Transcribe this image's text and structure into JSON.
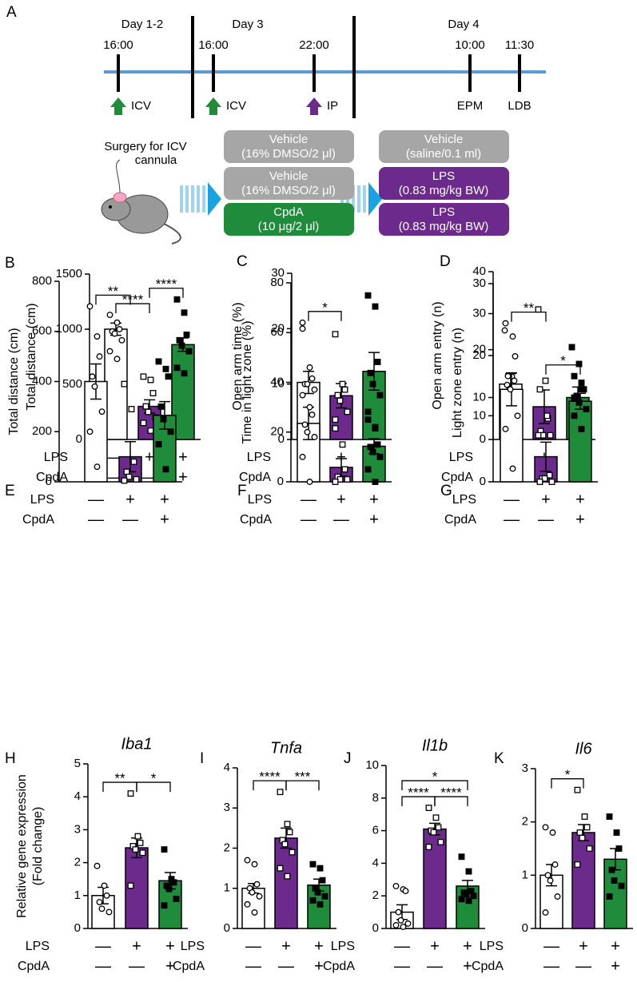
{
  "diagram": {
    "label": "A",
    "days": [
      "Day 1-2",
      "Day 3",
      "Day 4"
    ],
    "times": [
      "16:00",
      "16:00",
      "22:00",
      "10:00",
      "11:30"
    ],
    "events": [
      "ICV",
      "ICV",
      "IP",
      "EPM",
      "LDB"
    ],
    "surgery": [
      "Surgery for ICV",
      "cannula"
    ],
    "treatments_day3": [
      [
        "Vehicle",
        "(16% DMSO/2 μl)"
      ],
      [
        "Vehicle",
        "(16% DMSO/2 μl)"
      ],
      [
        "CpdA",
        "(10 μg/2 μl)"
      ]
    ],
    "treatments_day4": [
      [
        "Vehicle",
        "(saline/0.1 ml)"
      ],
      [
        "LPS",
        "(0.83 mg/kg BW)"
      ],
      [
        "LPS",
        "(0.83 mg/kg BW)"
      ]
    ]
  },
  "style": {
    "colors": [
      "#ffffff",
      "#6b2a8c",
      "#1e8c3a"
    ],
    "markers": [
      "circle-open",
      "square-open",
      "square-filled"
    ]
  },
  "chart_data": [
    {
      "type": "bar",
      "panel": "B",
      "ylabel": [
        "Total distance (cm)"
      ],
      "ylim": [
        0,
        1500
      ],
      "yticks": [
        0,
        500,
        1000,
        1500
      ],
      "means": [
        1000,
        300,
        860
      ],
      "errors": [
        55,
        60,
        60
      ],
      "points": [
        [
          1130,
          1060,
          1000,
          980,
          960,
          900,
          800,
          730
        ],
        [
          570,
          540,
          420,
          300,
          250,
          200,
          150,
          80
        ],
        [
          1270,
          1150,
          950,
          900,
          850,
          800,
          650,
          600
        ]
      ],
      "brackets": [
        {
          "from": 0,
          "to": 1,
          "label": "****"
        },
        {
          "from": 1,
          "to": 2,
          "label": "****"
        }
      ],
      "conditions": [
        {
          "name": "LPS",
          "signs": [
            "—",
            "+",
            "+"
          ]
        },
        {
          "name": "CpdA",
          "signs": [
            "—",
            "—",
            "+"
          ]
        }
      ]
    },
    {
      "type": "bar",
      "panel": "C",
      "ylabel": [
        "Open arm time (%)"
      ],
      "ylim": [
        0,
        30
      ],
      "yticks": [
        0,
        10,
        20,
        30
      ],
      "means": [
        10.3,
        7.9,
        12.3
      ],
      "errors": [
        2,
        2.2,
        3.4
      ],
      "points": [
        [
          20,
          13,
          11,
          10,
          10,
          9,
          8,
          0
        ],
        [
          19,
          10,
          9,
          8,
          7,
          5,
          2
        ],
        [
          26,
          24,
          14,
          12,
          10,
          8,
          5,
          2
        ]
      ],
      "brackets": [],
      "conditions": [
        {
          "name": "LPS",
          "signs": [
            "—",
            "+",
            "+"
          ]
        },
        {
          "name": "CpdA",
          "signs": [
            "—",
            "—",
            "+"
          ]
        }
      ]
    },
    {
      "type": "bar",
      "panel": "D",
      "ylabel": [
        "Open arm entry (n)"
      ],
      "ylim": [
        0,
        40
      ],
      "yticks": [
        0,
        10,
        20,
        30,
        40
      ],
      "means": [
        13.2,
        7.8,
        10
      ],
      "errors": [
        2.5,
        4,
        2.5
      ],
      "points": [
        [
          26,
          15,
          14,
          13,
          12,
          11,
          10,
          0
        ],
        [
          31,
          14,
          5,
          2,
          1,
          1,
          1
        ],
        [
          22,
          18,
          12,
          10,
          8,
          6,
          4,
          2
        ]
      ],
      "brackets": [],
      "conditions": [
        {
          "name": "LPS",
          "signs": [
            "—",
            "+",
            "+"
          ]
        },
        {
          "name": "CpdA",
          "signs": [
            "—",
            "—",
            "+"
          ]
        }
      ]
    },
    {
      "type": "bar",
      "panel": "E",
      "ylabel": [
        "Total distance (cm)"
      ],
      "ylim": [
        0,
        800
      ],
      "yticks": [
        0,
        200,
        400,
        600,
        800
      ],
      "means": [
        400,
        100,
        265
      ],
      "errors": [
        70,
        60,
        55
      ],
      "points": [
        [
          700,
          580,
          500,
          420,
          380,
          280,
          200,
          60
        ],
        [
          390,
          290,
          80,
          40,
          20,
          10,
          5
        ],
        [
          480,
          450,
          420,
          300,
          250,
          200,
          150,
          50
        ]
      ],
      "brackets": [
        {
          "from": 0,
          "to": 1,
          "label": "**"
        }
      ],
      "conditions": [
        {
          "name": "LPS",
          "signs": [
            "—",
            "+",
            "+"
          ]
        },
        {
          "name": "CpdA",
          "signs": [
            "—",
            "—",
            "+"
          ]
        }
      ]
    },
    {
      "type": "bar",
      "panel": "F",
      "ylabel": [
        "Time in light zone (%)"
      ],
      "ylim": [
        0,
        80
      ],
      "yticks": [
        0,
        20,
        40,
        60,
        80
      ],
      "means": [
        23.5,
        5.8,
        14.3
      ],
      "errors": [
        6.5,
        3.5,
        3
      ],
      "points": [
        [
          64,
          30,
          27,
          23,
          20,
          18,
          10,
          0
        ],
        [
          25,
          15,
          5,
          2,
          1,
          1,
          0
        ],
        [
          25,
          22,
          15,
          14,
          12,
          10,
          5,
          0
        ]
      ],
      "brackets": [
        {
          "from": 0,
          "to": 1,
          "label": "*"
        }
      ],
      "conditions": [
        {
          "name": "LPS",
          "signs": [
            "—",
            "+",
            "+"
          ]
        },
        {
          "name": "CpdA",
          "signs": [
            "—",
            "—",
            "+"
          ]
        }
      ]
    },
    {
      "type": "bar",
      "panel": "G",
      "ylabel": [
        "Light zone entry (n)"
      ],
      "ylim": [
        0,
        30
      ],
      "yticks": [
        0,
        10,
        20,
        30
      ],
      "means": [
        14,
        3.8,
        12.2
      ],
      "errors": [
        2.5,
        2.2,
        1.2
      ],
      "points": [
        [
          24,
          22,
          19,
          16,
          14,
          10,
          8,
          2
        ],
        [
          14,
          10,
          1,
          0.5,
          0.5,
          0,
          0
        ],
        [
          16,
          15,
          14,
          13,
          12,
          11,
          10,
          8
        ]
      ],
      "brackets": [
        {
          "from": 0,
          "to": 1,
          "label": "**"
        },
        {
          "from": 1,
          "to": 2,
          "label": "*"
        }
      ],
      "conditions": [
        {
          "name": "LPS",
          "signs": [
            "—",
            "+",
            "+"
          ]
        },
        {
          "name": "CpdA",
          "signs": [
            "—",
            "—",
            "+"
          ]
        }
      ]
    },
    {
      "type": "bar",
      "panel": "H",
      "title": "Iba1",
      "ylabel": [
        "Relative gene expression",
        "(Fold change)"
      ],
      "ylim": [
        0,
        5
      ],
      "yticks": [
        0,
        1,
        2,
        3,
        4,
        5
      ],
      "means": [
        1.0,
        2.45,
        1.45
      ],
      "errors": [
        0.25,
        0.3,
        0.25
      ],
      "points": [
        [
          1.9,
          1.3,
          1.0,
          0.8,
          0.6,
          0.5
        ],
        [
          4.1,
          2.8,
          2.6,
          2.5,
          2.4,
          2.3,
          1.3
        ],
        [
          2.4,
          1.5,
          1.4,
          1.3,
          1.2,
          0.9,
          0.7
        ]
      ],
      "brackets": [
        {
          "from": 0,
          "to": 1,
          "label": "**"
        },
        {
          "from": 1,
          "to": 2,
          "label": "*"
        }
      ],
      "conditions": [
        {
          "name": "LPS",
          "signs": [
            "—",
            "+",
            "+"
          ]
        },
        {
          "name": "CpdA",
          "signs": [
            "—",
            "—",
            "+"
          ]
        }
      ]
    },
    {
      "type": "bar",
      "panel": "I",
      "title": "Tnfa",
      "ylim": [
        0,
        4
      ],
      "yticks": [
        0,
        1,
        2,
        3,
        4
      ],
      "means": [
        1.0,
        2.25,
        1.08
      ],
      "errors": [
        0.12,
        0.25,
        0.15
      ],
      "points": [
        [
          1.7,
          1.6,
          1.1,
          1.0,
          0.9,
          0.8,
          0.6,
          0.4
        ],
        [
          3.4,
          2.6,
          2.4,
          2.2,
          2.1,
          1.9,
          1.5,
          1.3
        ],
        [
          1.6,
          1.5,
          1.2,
          1.0,
          0.9,
          0.8,
          0.7,
          0.6
        ]
      ],
      "brackets": [
        {
          "from": 0,
          "to": 1,
          "label": "****"
        },
        {
          "from": 1,
          "to": 2,
          "label": "***"
        }
      ],
      "conditions": [
        {
          "name": "LPS",
          "signs": [
            "—",
            "+",
            "+"
          ]
        },
        {
          "name": "CpdA",
          "signs": [
            "—",
            "—",
            "+"
          ]
        }
      ]
    },
    {
      "type": "bar",
      "panel": "J",
      "title": "Il1b",
      "ylim": [
        0,
        10
      ],
      "yticks": [
        0,
        2,
        4,
        6,
        8,
        10
      ],
      "means": [
        1.0,
        6.1,
        2.6
      ],
      "errors": [
        0.45,
        0.35,
        0.35
      ],
      "points": [
        [
          2.6,
          2.4,
          2.3,
          1.0,
          0.5,
          0.3,
          0.2,
          0.1
        ],
        [
          7.4,
          6.8,
          6.2,
          6.0,
          5.9,
          5.3,
          5.0
        ],
        [
          4.4,
          3.5,
          2.3,
          2.2,
          2.1,
          2.0,
          1.8,
          1.7
        ]
      ],
      "brackets": [
        {
          "from": 0,
          "to": 1,
          "label": "****"
        },
        {
          "from": 1,
          "to": 2,
          "label": "****"
        },
        {
          "from": 0,
          "to": 2,
          "label": "*"
        }
      ],
      "conditions": [
        {
          "name": "LPS",
          "signs": [
            "—",
            "+",
            "+"
          ]
        },
        {
          "name": "CpdA",
          "signs": [
            "—",
            "—",
            "+"
          ]
        }
      ]
    },
    {
      "type": "bar",
      "panel": "K",
      "title": "Il6",
      "ylim": [
        0,
        3
      ],
      "yticks": [
        0,
        1,
        2,
        3
      ],
      "means": [
        1.0,
        1.8,
        1.3
      ],
      "errors": [
        0.2,
        0.15,
        0.2
      ],
      "points": [
        [
          1.9,
          1.8,
          1.2,
          1.0,
          0.9,
          0.6,
          0.3
        ],
        [
          2.6,
          2.1,
          1.9,
          1.8,
          1.7,
          1.5,
          1.2
        ],
        [
          2.1,
          1.8,
          1.5,
          1.1,
          0.9,
          0.8,
          0.6
        ]
      ],
      "brackets": [
        {
          "from": 0,
          "to": 1,
          "label": "*"
        }
      ],
      "conditions": [
        {
          "name": "LPS",
          "signs": [
            "—",
            "+",
            "+"
          ]
        },
        {
          "name": "CpdA",
          "signs": [
            "—",
            "—",
            "+"
          ]
        }
      ]
    }
  ]
}
